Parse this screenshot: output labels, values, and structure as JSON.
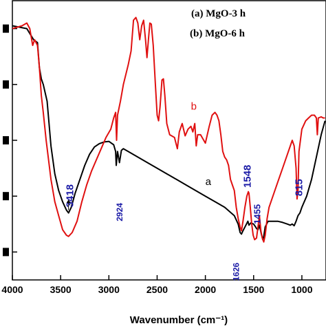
{
  "chart_data": {
    "type": "line",
    "xlabel": "Wavenumber (cm⁻¹)",
    "ylabel": "",
    "xlim": [
      4000,
      750
    ],
    "ylim": [
      0,
      5
    ],
    "x_ticks": [
      {
        "value": 4000,
        "label": "4000"
      },
      {
        "value": 3500,
        "label": "3500"
      },
      {
        "value": 3000,
        "label": "3000"
      },
      {
        "value": 2500,
        "label": "2500"
      },
      {
        "value": 2000,
        "label": "2000"
      },
      {
        "value": 1500,
        "label": "1500"
      },
      {
        "value": 1000,
        "label": "1000"
      }
    ],
    "y_ticks": [
      {
        "value": 0.5,
        "label": ""
      },
      {
        "value": 1.5,
        "label": ""
      },
      {
        "value": 2.5,
        "label": ""
      },
      {
        "value": 3.5,
        "label": ""
      },
      {
        "value": 4.5,
        "label": ""
      }
    ],
    "legend": [
      {
        "text": "(a) MgO-3 h"
      },
      {
        "text": "(b) MgO-6 h"
      }
    ],
    "series": [
      {
        "name": "a",
        "color": "#000000",
        "points": [
          [
            4000,
            4.55
          ],
          [
            3850,
            4.5
          ],
          [
            3780,
            4.3
          ],
          [
            3740,
            4.25
          ],
          [
            3720,
            3.8
          ],
          [
            3700,
            3.6
          ],
          [
            3680,
            3.5
          ],
          [
            3660,
            3.35
          ],
          [
            3640,
            3.2
          ],
          [
            3620,
            2.8
          ],
          [
            3600,
            2.4
          ],
          [
            3560,
            1.9
          ],
          [
            3520,
            1.6
          ],
          [
            3480,
            1.4
          ],
          [
            3440,
            1.25
          ],
          [
            3418,
            1.2
          ],
          [
            3390,
            1.3
          ],
          [
            3350,
            1.55
          ],
          [
            3300,
            1.8
          ],
          [
            3250,
            2.05
          ],
          [
            3200,
            2.25
          ],
          [
            3150,
            2.38
          ],
          [
            3100,
            2.44
          ],
          [
            3050,
            2.47
          ],
          [
            3000,
            2.48
          ],
          [
            2950,
            2.42
          ],
          [
            2930,
            2.3
          ],
          [
            2924,
            2.05
          ],
          [
            2910,
            2.3
          ],
          [
            2890,
            2.1
          ],
          [
            2870,
            2.32
          ],
          [
            2850,
            2.35
          ],
          [
            2800,
            2.3
          ],
          [
            2700,
            2.2
          ],
          [
            2600,
            2.1
          ],
          [
            2500,
            2.0
          ],
          [
            2400,
            1.9
          ],
          [
            2300,
            1.8
          ],
          [
            2200,
            1.7
          ],
          [
            2100,
            1.6
          ],
          [
            2000,
            1.5
          ],
          [
            1900,
            1.4
          ],
          [
            1800,
            1.3
          ],
          [
            1700,
            1.15
          ],
          [
            1660,
            1.0
          ],
          [
            1640,
            0.85
          ],
          [
            1626,
            0.82
          ],
          [
            1610,
            0.88
          ],
          [
            1580,
            0.98
          ],
          [
            1560,
            1.05
          ],
          [
            1548,
            0.98
          ],
          [
            1530,
            1.02
          ],
          [
            1500,
            1.0
          ],
          [
            1480,
            0.95
          ],
          [
            1470,
            0.92
          ],
          [
            1455,
            0.9
          ],
          [
            1440,
            0.98
          ],
          [
            1420,
            0.82
          ],
          [
            1405,
            0.72
          ],
          [
            1395,
            0.78
          ],
          [
            1380,
            0.95
          ],
          [
            1350,
            1.05
          ],
          [
            1300,
            1.05
          ],
          [
            1250,
            1.05
          ],
          [
            1200,
            1.03
          ],
          [
            1150,
            1.0
          ],
          [
            1120,
            0.98
          ],
          [
            1100,
            1.0
          ],
          [
            1080,
            0.97
          ],
          [
            1060,
            1.05
          ],
          [
            1040,
            1.15
          ],
          [
            1020,
            1.2
          ],
          [
            1000,
            1.3
          ],
          [
            950,
            1.5
          ],
          [
            900,
            1.8
          ],
          [
            850,
            2.2
          ],
          [
            800,
            2.6
          ],
          [
            760,
            2.85
          ]
        ]
      },
      {
        "name": "b",
        "color": "#e01010",
        "points": [
          [
            4000,
            4.5
          ],
          [
            3900,
            4.55
          ],
          [
            3850,
            4.6
          ],
          [
            3820,
            4.5
          ],
          [
            3790,
            4.2
          ],
          [
            3770,
            4.3
          ],
          [
            3740,
            4.2
          ],
          [
            3720,
            3.8
          ],
          [
            3700,
            3.3
          ],
          [
            3680,
            3.0
          ],
          [
            3650,
            2.5
          ],
          [
            3600,
            1.8
          ],
          [
            3560,
            1.4
          ],
          [
            3520,
            1.15
          ],
          [
            3480,
            0.9
          ],
          [
            3440,
            0.8
          ],
          [
            3418,
            0.78
          ],
          [
            3380,
            0.85
          ],
          [
            3330,
            1.05
          ],
          [
            3280,
            1.4
          ],
          [
            3230,
            1.7
          ],
          [
            3180,
            1.95
          ],
          [
            3130,
            2.15
          ],
          [
            3080,
            2.35
          ],
          [
            3030,
            2.55
          ],
          [
            2980,
            2.7
          ],
          [
            2950,
            2.9
          ],
          [
            2930,
            3.0
          ],
          [
            2920,
            2.5
          ],
          [
            2910,
            2.95
          ],
          [
            2880,
            3.2
          ],
          [
            2850,
            3.5
          ],
          [
            2800,
            3.85
          ],
          [
            2770,
            4.1
          ],
          [
            2745,
            4.65
          ],
          [
            2720,
            4.7
          ],
          [
            2700,
            4.6
          ],
          [
            2680,
            4.3
          ],
          [
            2660,
            4.55
          ],
          [
            2640,
            4.65
          ],
          [
            2620,
            4.3
          ],
          [
            2605,
            3.98
          ],
          [
            2590,
            4.3
          ],
          [
            2575,
            4.6
          ],
          [
            2560,
            4.58
          ],
          [
            2540,
            4.2
          ],
          [
            2520,
            3.55
          ],
          [
            2500,
            2.95
          ],
          [
            2485,
            2.85
          ],
          [
            2470,
            3.1
          ],
          [
            2450,
            3.58
          ],
          [
            2435,
            3.6
          ],
          [
            2420,
            3.3
          ],
          [
            2400,
            2.8
          ],
          [
            2370,
            2.6
          ],
          [
            2320,
            2.55
          ],
          [
            2290,
            2.35
          ],
          [
            2270,
            2.65
          ],
          [
            2240,
            2.8
          ],
          [
            2210,
            2.58
          ],
          [
            2180,
            2.7
          ],
          [
            2150,
            2.75
          ],
          [
            2130,
            2.65
          ],
          [
            2110,
            2.8
          ],
          [
            2095,
            2.4
          ],
          [
            2080,
            2.6
          ],
          [
            2050,
            2.6
          ],
          [
            2000,
            2.45
          ],
          [
            1960,
            2.75
          ],
          [
            1930,
            2.95
          ],
          [
            1900,
            3.0
          ],
          [
            1880,
            2.95
          ],
          [
            1860,
            2.85
          ],
          [
            1840,
            2.6
          ],
          [
            1820,
            2.3
          ],
          [
            1800,
            2.2
          ],
          [
            1780,
            2.15
          ],
          [
            1760,
            2.05
          ],
          [
            1740,
            1.8
          ],
          [
            1720,
            1.7
          ],
          [
            1700,
            1.6
          ],
          [
            1680,
            1.3
          ],
          [
            1660,
            1.1
          ],
          [
            1640,
            0.95
          ],
          [
            1626,
            0.88
          ],
          [
            1610,
            1.05
          ],
          [
            1590,
            1.3
          ],
          [
            1570,
            1.5
          ],
          [
            1555,
            1.58
          ],
          [
            1548,
            1.55
          ],
          [
            1535,
            1.3
          ],
          [
            1520,
            1.0
          ],
          [
            1505,
            0.8
          ],
          [
            1490,
            0.72
          ],
          [
            1470,
            0.75
          ],
          [
            1455,
            0.95
          ],
          [
            1440,
            1.15
          ],
          [
            1425,
            0.88
          ],
          [
            1410,
            0.75
          ],
          [
            1395,
            0.68
          ],
          [
            1380,
            0.8
          ],
          [
            1360,
            1.1
          ],
          [
            1340,
            1.3
          ],
          [
            1300,
            1.5
          ],
          [
            1250,
            1.75
          ],
          [
            1200,
            2.0
          ],
          [
            1150,
            2.25
          ],
          [
            1100,
            2.5
          ],
          [
            1080,
            2.4
          ],
          [
            1060,
            2.0
          ],
          [
            1050,
            1.45
          ],
          [
            1040,
            1.6
          ],
          [
            1030,
            2.3
          ],
          [
            1000,
            2.7
          ],
          [
            960,
            2.85
          ],
          [
            930,
            2.9
          ],
          [
            900,
            2.95
          ],
          [
            870,
            2.95
          ],
          [
            850,
            2.9
          ],
          [
            840,
            2.6
          ],
          [
            830,
            2.9
          ],
          [
            800,
            2.92
          ],
          [
            780,
            2.9
          ],
          [
            760,
            2.9
          ]
        ]
      }
    ],
    "series_tags": [
      {
        "text": "a",
        "x": 2000,
        "y": 1.7
      },
      {
        "text": "b",
        "x": 2150,
        "y": 3.05
      }
    ],
    "annotations": [
      {
        "text": "3418",
        "x": 3370,
        "y": 1.3,
        "rotate": -90,
        "size": 15
      },
      {
        "text": "2924",
        "x": 2860,
        "y": 1.05,
        "rotate": -90,
        "size": 12
      },
      {
        "text": "1626",
        "x": 1650,
        "y": -0.02,
        "rotate": -90,
        "size": 12
      },
      {
        "text": "1548",
        "x": 1532,
        "y": 1.65,
        "rotate": -90,
        "size": 15
      },
      {
        "text": "1455",
        "x": 1432,
        "y": 1.0,
        "rotate": -90,
        "size": 13
      },
      {
        "text": "815",
        "x": 995,
        "y": 1.5,
        "rotate": -90,
        "size": 15
      }
    ]
  }
}
